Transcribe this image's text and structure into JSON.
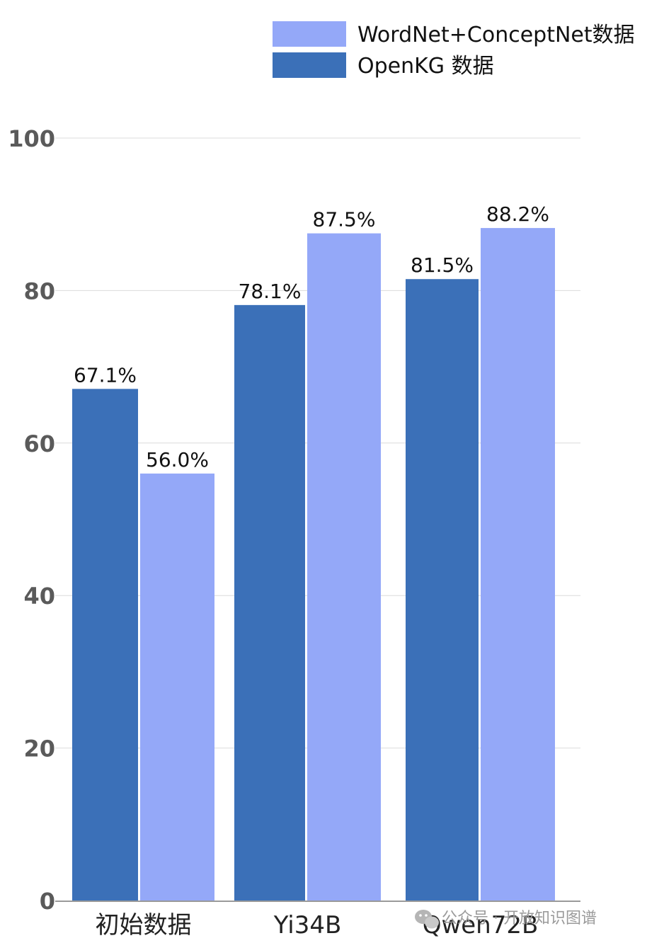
{
  "chart_data": {
    "type": "bar",
    "categories": [
      "初始数据",
      "Yi34B",
      "Qwen72B"
    ],
    "series": [
      {
        "name": "OpenKG 数据",
        "color": "#3b70b8",
        "values": [
          67.1,
          78.1,
          81.5
        ],
        "labels": [
          "67.1%",
          "78.1%",
          "81.5%"
        ]
      },
      {
        "name": "WordNet+ConceptNet数据",
        "color": "#94a8f8",
        "values": [
          56.0,
          87.5,
          88.2
        ],
        "labels": [
          "56.0%",
          "87.5%",
          "88.2%"
        ]
      }
    ],
    "legend_order": [
      1,
      0
    ],
    "legend_position": "top-right",
    "ylim": [
      0,
      100
    ],
    "yticks": [
      "0",
      "20",
      "40",
      "60",
      "80",
      "100"
    ],
    "grid": true,
    "title": "",
    "xlabel": "",
    "ylabel": ""
  },
  "watermark": {
    "icon": "wechat-icon",
    "text": "公众号 · 开放知识图谱"
  }
}
